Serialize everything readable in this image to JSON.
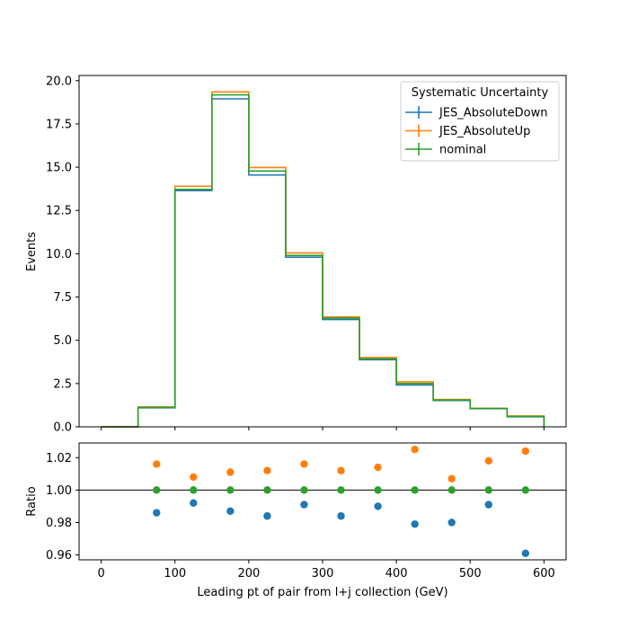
{
  "chart_data": [
    {
      "type": "line",
      "ylabel": "Events",
      "xlim": [
        -30,
        630
      ],
      "ylim": [
        0,
        20.3
      ],
      "x_ticks": [
        "0",
        "100",
        "200",
        "300",
        "400",
        "500",
        "600"
      ],
      "y_ticks": [
        "0.0",
        "2.5",
        "5.0",
        "7.5",
        "10.0",
        "12.5",
        "15.0",
        "17.5",
        "20.0"
      ],
      "bin_edges": [
        0,
        50,
        100,
        150,
        200,
        250,
        300,
        350,
        400,
        450,
        500,
        550,
        600
      ],
      "series": [
        {
          "name": "JES_AbsoluteDown",
          "color": "#1f77b4",
          "values": [
            0,
            1.1,
            13.65,
            18.95,
            14.55,
            9.8,
            6.2,
            3.88,
            2.42,
            1.52,
            1.05,
            0.58
          ]
        },
        {
          "name": "JES_AbsoluteUp",
          "color": "#ff7f0e",
          "values": [
            0,
            1.15,
            13.9,
            19.35,
            14.98,
            10.05,
            6.35,
            4.0,
            2.6,
            1.58,
            1.07,
            0.63
          ]
        },
        {
          "name": "nominal",
          "color": "#2ca02c",
          "values": [
            0,
            1.12,
            13.72,
            19.18,
            14.78,
            9.9,
            6.28,
            3.93,
            2.5,
            1.55,
            1.06,
            0.6
          ]
        }
      ],
      "legend": {
        "title": "Systematic Uncertainty",
        "placement": "top-right"
      }
    },
    {
      "type": "scatter",
      "xlabel": "Leading pt of pair from l+j collection (GeV)",
      "ylabel": "Ratio",
      "xlim": [
        -30,
        630
      ],
      "ylim": [
        0.957,
        1.029
      ],
      "x_ticks": [
        "0",
        "100",
        "200",
        "300",
        "400",
        "500",
        "600"
      ],
      "y_ticks": [
        "0.96",
        "0.98",
        "1.00",
        "1.02"
      ],
      "reference_line": 1.0,
      "x": [
        75,
        125,
        175,
        225,
        275,
        325,
        375,
        425,
        475,
        525,
        575
      ],
      "series": [
        {
          "name": "JES_AbsoluteDown",
          "color": "#1f77b4",
          "values": [
            0.986,
            0.992,
            0.987,
            0.984,
            0.991,
            0.984,
            0.99,
            0.979,
            0.98,
            0.991,
            0.961
          ]
        },
        {
          "name": "JES_AbsoluteUp",
          "color": "#ff7f0e",
          "values": [
            1.016,
            1.008,
            1.011,
            1.012,
            1.016,
            1.012,
            1.014,
            1.025,
            1.007,
            1.018,
            1.024
          ]
        },
        {
          "name": "nominal",
          "color": "#2ca02c",
          "values": [
            1.0,
            1.0,
            1.0,
            1.0,
            1.0,
            1.0,
            1.0,
            1.0,
            1.0,
            1.0,
            1.0
          ]
        }
      ]
    }
  ]
}
